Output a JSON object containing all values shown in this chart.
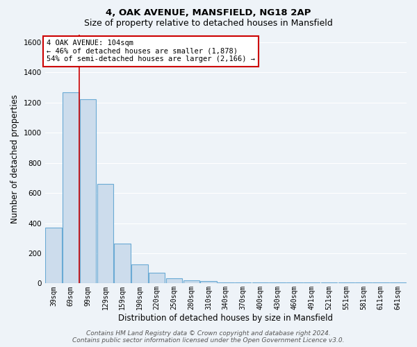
{
  "title": "4, OAK AVENUE, MANSFIELD, NG18 2AP",
  "subtitle": "Size of property relative to detached houses in Mansfield",
  "xlabel": "Distribution of detached houses by size in Mansfield",
  "ylabel": "Number of detached properties",
  "bin_labels": [
    "39sqm",
    "69sqm",
    "99sqm",
    "129sqm",
    "159sqm",
    "190sqm",
    "220sqm",
    "250sqm",
    "280sqm",
    "310sqm",
    "340sqm",
    "370sqm",
    "400sqm",
    "430sqm",
    "460sqm",
    "491sqm",
    "521sqm",
    "551sqm",
    "581sqm",
    "611sqm",
    "641sqm"
  ],
  "bar_heights": [
    370,
    1270,
    1220,
    660,
    265,
    125,
    72,
    35,
    20,
    15,
    5,
    5,
    5,
    5,
    5,
    5,
    5,
    5,
    5,
    5,
    5
  ],
  "bar_color": "#ccdcec",
  "bar_edge_color": "#6aaad4",
  "background_color": "#eef3f8",
  "grid_color": "#ffffff",
  "annotation_text": "4 OAK AVENUE: 104sqm\n← 46% of detached houses are smaller (1,878)\n54% of semi-detached houses are larger (2,166) →",
  "annotation_box_color": "#ffffff",
  "annotation_box_edge": "#cc0000",
  "vline_color": "#cc0000",
  "vline_x_bin": 2,
  "ylim": [
    0,
    1650
  ],
  "yticks": [
    0,
    200,
    400,
    600,
    800,
    1000,
    1200,
    1400,
    1600
  ],
  "footer": "Contains HM Land Registry data © Crown copyright and database right 2024.\nContains public sector information licensed under the Open Government Licence v3.0.",
  "title_fontsize": 9.5,
  "subtitle_fontsize": 9,
  "label_fontsize": 8.5,
  "tick_fontsize": 7,
  "footer_fontsize": 6.5,
  "annot_fontsize": 7.5
}
